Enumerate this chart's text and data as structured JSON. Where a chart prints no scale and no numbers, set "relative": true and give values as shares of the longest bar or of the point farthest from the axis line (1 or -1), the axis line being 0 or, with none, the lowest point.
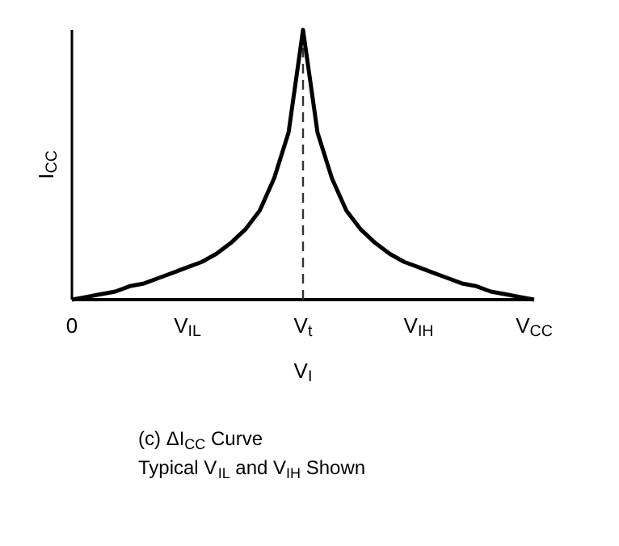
{
  "chart_data": {
    "type": "line",
    "relative": true,
    "xlabel": "V$_{I}$",
    "ylabel": "I$_{CC}$",
    "categories": [
      "0",
      null,
      null,
      null,
      null,
      null,
      null,
      null,
      "V$_{IL}$",
      null,
      null,
      null,
      null,
      null,
      null,
      null,
      "V$_{t}$",
      null,
      null,
      null,
      null,
      null,
      null,
      null,
      "V$_{IH}$",
      null,
      null,
      null,
      null,
      null,
      null,
      null,
      "V$_{CC}$"
    ],
    "series": [
      {
        "color": "#000000",
        "values": [
          0,
          0.01,
          0.02,
          0.03,
          0.05,
          0.06,
          0.08,
          0.1,
          0.12,
          0.14,
          0.17,
          0.21,
          0.26,
          0.33,
          0.45,
          0.62,
          1,
          0.62,
          0.45,
          0.33,
          0.26,
          0.21,
          0.17,
          0.14,
          0.12,
          0.1,
          0.08,
          0.06,
          0.05,
          0.03,
          0.02,
          0.01,
          0
        ]
      }
    ],
    "ref_lines": [
      {
        "axis": "x",
        "value": "V$_{t}$",
        "color": "#333333",
        "line_style": "dashed"
      }
    ],
    "annotations": [
      "(c) ΔI$_{CC}$ Curve",
      "Typical V$_{IL}$ and V$_{IH}$ Shown"
    ],
    "grid": false,
    "marker": "none",
    "line_style": "solid"
  }
}
